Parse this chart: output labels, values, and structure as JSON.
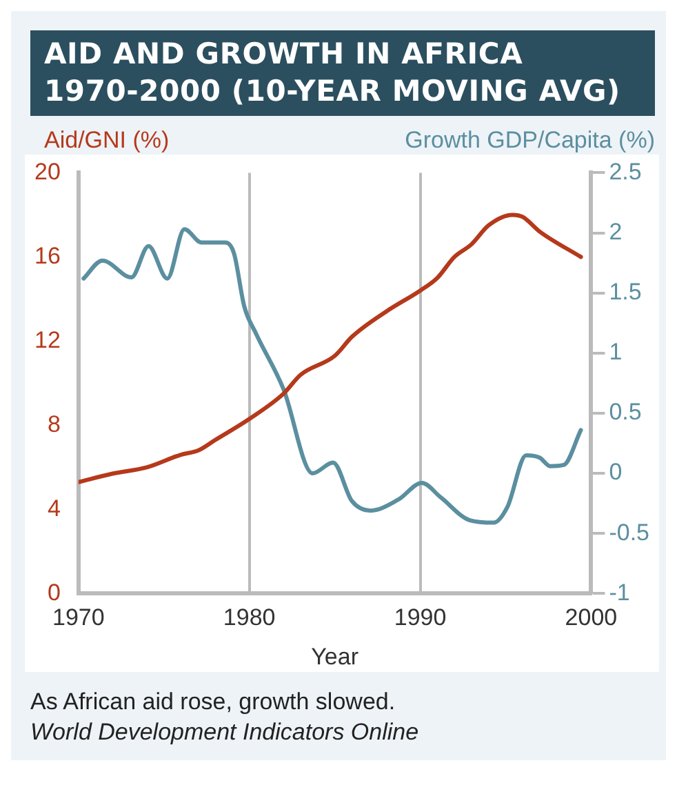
{
  "chart_data": {
    "type": "line",
    "title": "AID AND GROWTH IN AFRICA\n1970-2000 (10-YEAR MOVING AVG)",
    "xlabel": "Year",
    "ylabel": "Aid/GNI (%)",
    "y2label": "Growth GDP/Capita (%)",
    "series": [
      {
        "color": "#b5391b",
        "x": [
          1970,
          1972,
          1974,
          1976,
          1977,
          1978,
          1980,
          1982,
          1983,
          1985,
          1986,
          1988,
          1990,
          1991,
          1992,
          1993,
          1994,
          1995.4,
          1996,
          1997,
          1999.4
        ],
        "values": [
          5.3,
          5.7,
          6.0,
          6.6,
          6.8,
          7.3,
          8.3,
          9.5,
          10.4,
          11.3,
          12.2,
          13.4,
          14.4,
          15.0,
          16.0,
          16.6,
          17.5,
          18.0,
          17.9,
          17.2,
          16.0
        ]
      },
      {
        "color": "#5b8fa0",
        "axis": "y2",
        "x": [
          1970.3,
          1971.4,
          1973.1,
          1974.1,
          1975.2,
          1976.2,
          1977.2,
          1978.6,
          1979.1,
          1979.7,
          1980.4,
          1982.0,
          1983.7,
          1984.9,
          1986.0,
          1987.1,
          1988.7,
          1990.1,
          1991.2,
          1992.9,
          1994.3,
          1995.1,
          1996.2,
          1997.0,
          1997.6,
          1998.4,
          1999.4
        ],
        "values": [
          1.62,
          1.77,
          1.63,
          1.89,
          1.62,
          2.03,
          1.92,
          1.92,
          1.83,
          1.39,
          1.16,
          0.7,
          0.0,
          0.09,
          -0.23,
          -0.31,
          -0.22,
          -0.08,
          -0.2,
          -0.39,
          -0.41,
          -0.28,
          0.15,
          0.13,
          0.06,
          0.07,
          0.36
        ]
      }
    ],
    "xlim": [
      1970,
      2000
    ],
    "xticks": [
      1970,
      1980,
      1990,
      2000
    ],
    "ylim": [
      0,
      20
    ],
    "yticks": [
      0,
      4,
      8,
      12,
      16,
      20
    ],
    "y2lim": [
      -1,
      2.5
    ],
    "y2ticks": [
      -1,
      -0.5,
      0,
      0.5,
      1,
      1.5,
      2,
      2.5
    ],
    "grid": "x",
    "legend": false,
    "marker": "none",
    "line_style": "solid",
    "annotations": [
      "As African aid rose, growth slowed.",
      "World Development Indicators Online"
    ]
  }
}
